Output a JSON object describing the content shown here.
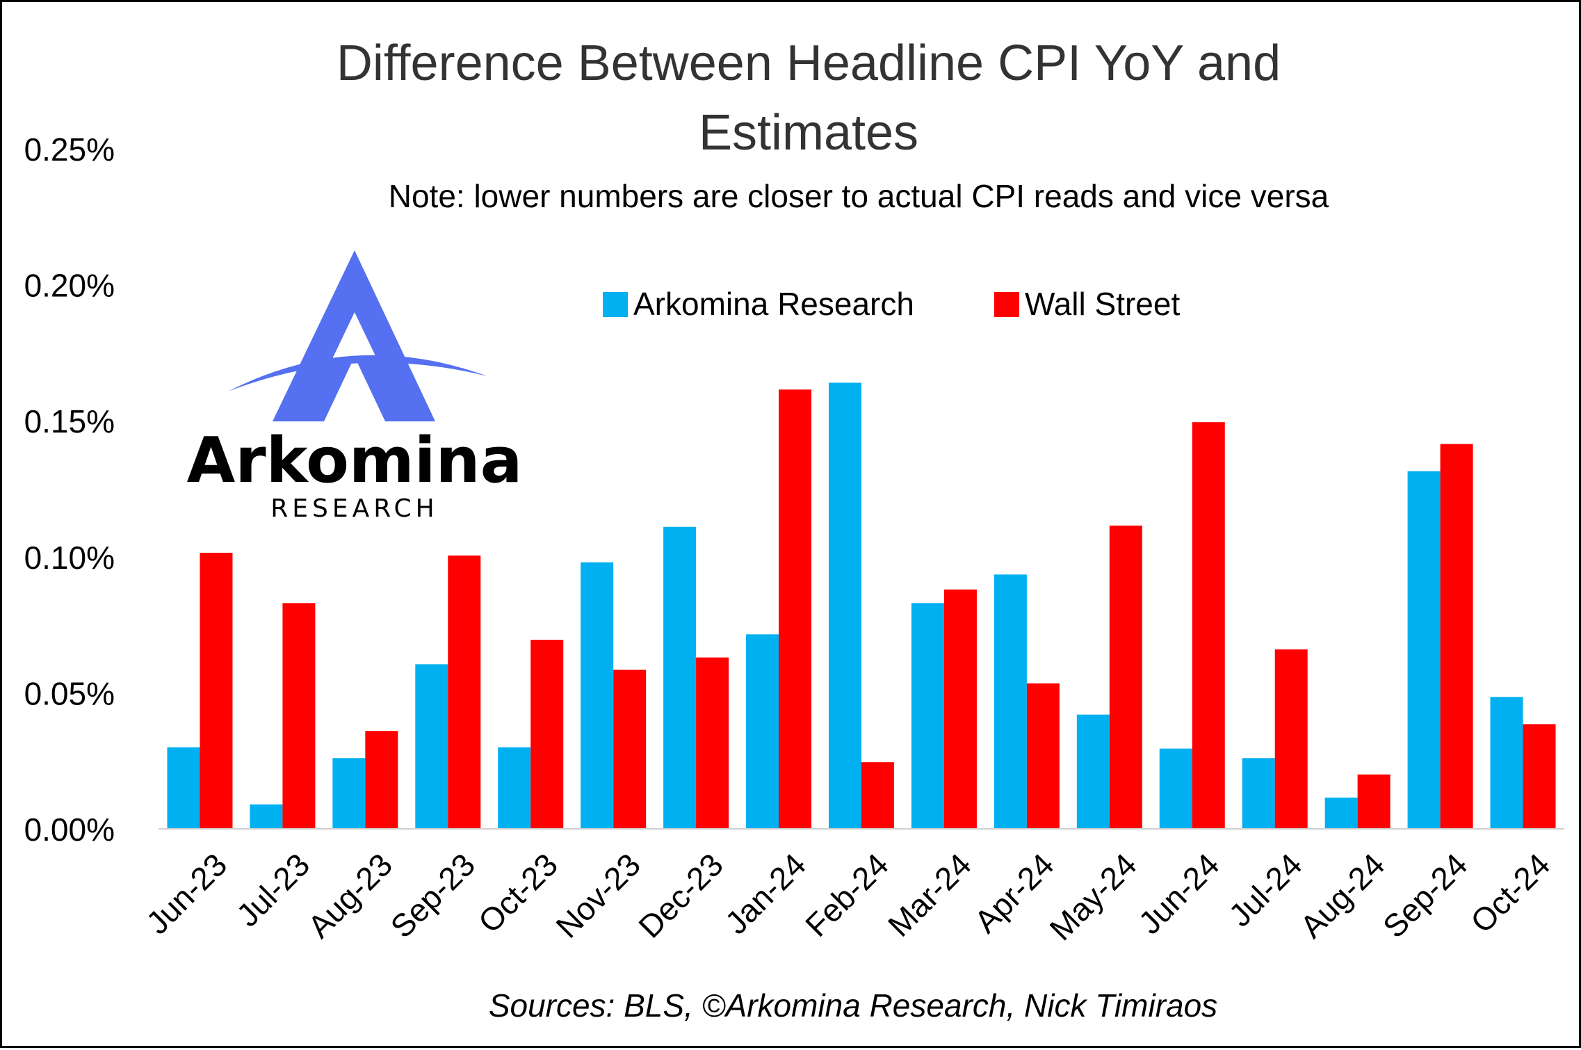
{
  "chart_data": {
    "type": "bar",
    "title": "Difference Between Headline CPI YoY and Estimates",
    "subtitle": "Note: lower numbers are closer to actual CPI reads and vice versa",
    "xlabel": "",
    "ylabel": "",
    "categories": [
      "Jun-23",
      "Jul-23",
      "Aug-23",
      "Sep-23",
      "Oct-23",
      "Nov-23",
      "Dec-23",
      "Jan-24",
      "Feb-24",
      "Mar-24",
      "Apr-24",
      "May-24",
      "Jun-24",
      "Jul-24",
      "Aug-24",
      "Sep-24",
      "Oct-24"
    ],
    "series": [
      {
        "name": "Arkomina Research",
        "color": "#00B0F0",
        "values": [
          0.03,
          0.009,
          0.026,
          0.0605,
          0.03,
          0.098,
          0.111,
          0.0715,
          0.164,
          0.083,
          0.0935,
          0.042,
          0.0295,
          0.026,
          0.0115,
          0.1315,
          0.0485
        ]
      },
      {
        "name": "Wall Street",
        "color": "#FF0000",
        "values": [
          0.1015,
          0.083,
          0.036,
          0.1005,
          0.0695,
          0.0585,
          0.063,
          0.1615,
          0.0245,
          0.088,
          0.0535,
          0.1115,
          0.1495,
          0.066,
          0.02,
          0.1415,
          0.0385
        ]
      }
    ],
    "ylim": [
      0,
      0.25
    ],
    "yticks": [
      "0.00%",
      "0.05%",
      "0.10%",
      "0.15%",
      "0.20%",
      "0.25%"
    ],
    "ytick_values": [
      0,
      0.05,
      0.1,
      0.15,
      0.2,
      0.25
    ],
    "grid": false,
    "legend_position": "top-center",
    "source": "Sources: BLS, ©Arkomina Research, Nick Timiraos"
  },
  "logo": {
    "name": "Arkomina",
    "tagline": "RESEARCH",
    "color": "#5570F0"
  }
}
